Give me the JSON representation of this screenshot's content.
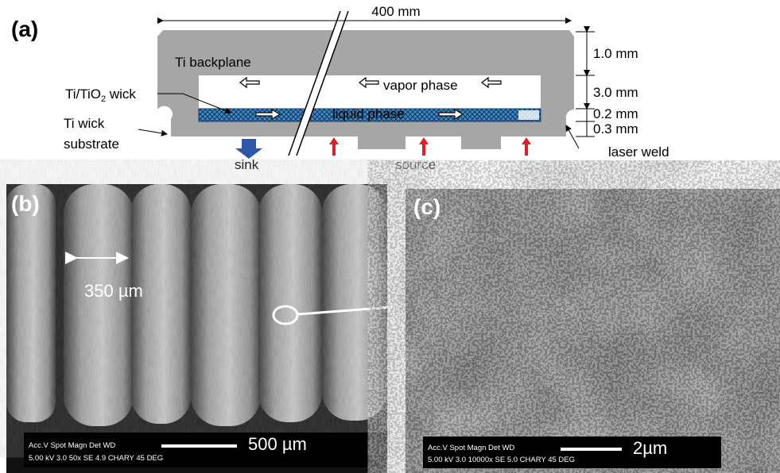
{
  "panel_a": {
    "label": "(a)",
    "width_dim": "400 mm",
    "dims": [
      "1.0 mm",
      "3.0 mm",
      "0.2 mm",
      "0.3 mm"
    ],
    "backplane": "Ti backplane",
    "vapor": "vapor phase",
    "liquid": "liquid phase",
    "wick": {
      "prefix": "Ti/TiO",
      "subscript": "2",
      "suffix": " wick"
    },
    "substrate": [
      "Ti wick",
      "substrate"
    ],
    "sink": "sink",
    "source": "source",
    "weld": "laser weld"
  },
  "panel_b": {
    "label": "(b)",
    "pitch": "350 µm",
    "info_head": "Acc.V  Spot Magn    Det  WD",
    "info_vals": "5.00 kV 3.0   50x       SE   4.9   CHARY 45 DEG",
    "scale": "500 µm"
  },
  "panel_c": {
    "label": "(c)",
    "info_head": "Acc.V  Spot Magn    Det  WD",
    "info_vals": "5.00 kV 3.0   10000x  SE   5.0   CHARY 45 DEG",
    "scale": "2µm"
  }
}
